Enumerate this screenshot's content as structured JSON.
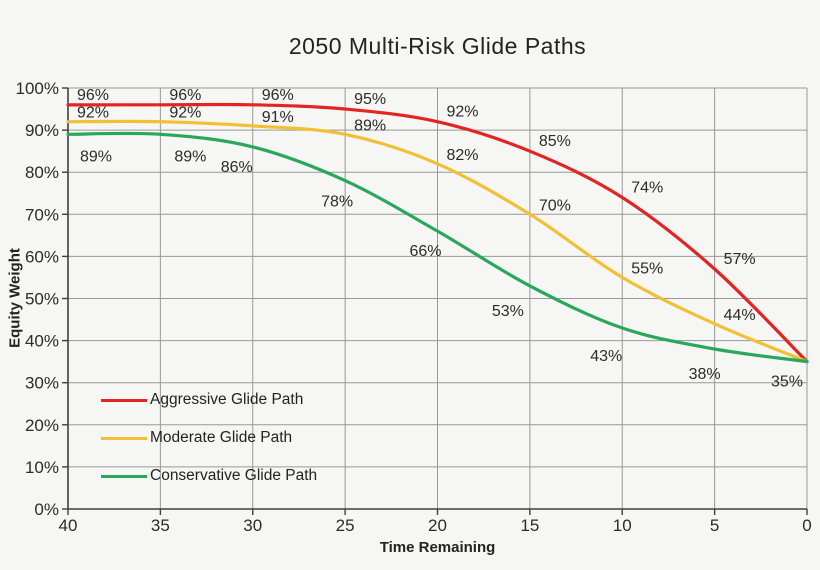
{
  "chart_data": {
    "type": "line",
    "title": "2050 Multi-Risk Glide Paths",
    "xlabel": "Time Remaining",
    "ylabel": "Equity Weight",
    "x": [
      40,
      35,
      30,
      25,
      20,
      15,
      10,
      5,
      0
    ],
    "x_axis_reversed": true,
    "xtick_labels": [
      "40",
      "35",
      "30",
      "25",
      "20",
      "15",
      "10",
      "5",
      "0"
    ],
    "ylim": [
      0,
      100
    ],
    "yticks": [
      0,
      10,
      20,
      30,
      40,
      50,
      60,
      70,
      80,
      90,
      100
    ],
    "ytick_labels": [
      "0%",
      "10%",
      "20%",
      "30%",
      "40%",
      "50%",
      "60%",
      "70%",
      "80%",
      "90%",
      "100%"
    ],
    "grid": true,
    "legend_position": "inside-bottom-left",
    "series": [
      {
        "name": "Aggressive Glide Path",
        "color": "#E22521",
        "values": [
          96,
          96,
          96,
          95,
          92,
          85,
          74,
          57,
          35
        ],
        "data_labels": [
          "96%",
          "96%",
          "96%",
          "95%",
          "92%",
          "85%",
          "74%",
          "57%",
          null
        ]
      },
      {
        "name": "Moderate Glide Path",
        "color": "#F2C032",
        "values": [
          92,
          92,
          91,
          89,
          82,
          70,
          55,
          44,
          35
        ],
        "data_labels": [
          "92%",
          "92%",
          "91%",
          "89%",
          "82%",
          "70%",
          "55%",
          "44%",
          null
        ]
      },
      {
        "name": "Conservative Glide Path",
        "color": "#29A85C",
        "values": [
          89,
          89,
          86,
          78,
          66,
          53,
          43,
          38,
          35
        ],
        "data_labels": [
          "89%",
          "89%",
          "86%",
          "78%",
          "66%",
          "53%",
          "43%",
          "38%",
          "35%"
        ]
      }
    ]
  },
  "colors": {
    "background": "#F6F6F5",
    "grid": "#999999",
    "axis": "#3F3F3F",
    "text": "#2B2B2B",
    "data_label": "#2B2B2B"
  }
}
